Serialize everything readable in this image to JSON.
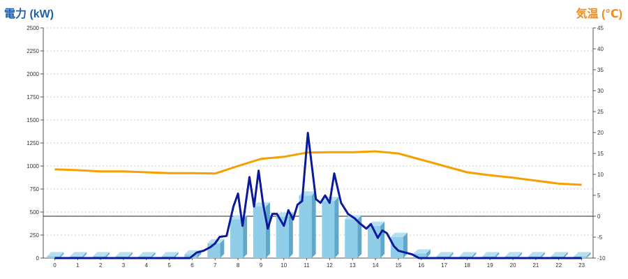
{
  "chart_data": {
    "type": "bar+line",
    "ylabel_left": "電力 (kW)",
    "ylabel_right": "気温 (℃)",
    "x_ticks": [
      "0",
      "1",
      "2",
      "3",
      "4",
      "5",
      "6",
      "7",
      "8",
      "9",
      "10",
      "11",
      "12",
      "13",
      "14",
      "15",
      "16",
      "17",
      "18",
      "19",
      "20",
      "21",
      "22",
      "23"
    ],
    "y_left_ticks": [
      "0",
      "250",
      "500",
      "750",
      "1000",
      "1250",
      "1500",
      "1750",
      "2000",
      "2250",
      "2500"
    ],
    "y_right_ticks": [
      "-10",
      "-5",
      "0",
      "5",
      "10",
      "15",
      "20",
      "25",
      "30",
      "35",
      "40",
      "45"
    ],
    "y_left_range": [
      0,
      2500
    ],
    "y_right_range": [
      -10,
      45
    ],
    "grid": "horizontal-dashed",
    "colors": {
      "bars": "#8fcde8",
      "bar_side": "#5fa8cc",
      "bar_top": "#b6e0f2",
      "power_line": "#0b1a9a",
      "temp_line": "#f5a000",
      "left_title": "#1f5fa8",
      "right_title": "#f08a1c"
    },
    "bar_series": {
      "values": [
        20,
        20,
        20,
        20,
        20,
        20,
        40,
        160,
        420,
        560,
        450,
        680,
        620,
        420,
        350,
        230,
        50,
        20,
        20,
        20,
        20,
        20,
        20,
        20
      ]
    },
    "power_series": {
      "points": [
        [
          0,
          0
        ],
        [
          1,
          0
        ],
        [
          2,
          0
        ],
        [
          3,
          0
        ],
        [
          4,
          0
        ],
        [
          5,
          0
        ],
        [
          5.9,
          0
        ],
        [
          6.2,
          60
        ],
        [
          6.5,
          80
        ],
        [
          6.8,
          120
        ],
        [
          7.0,
          160
        ],
        [
          7.2,
          230
        ],
        [
          7.5,
          240
        ],
        [
          7.8,
          560
        ],
        [
          8.0,
          700
        ],
        [
          8.2,
          350
        ],
        [
          8.5,
          880
        ],
        [
          8.7,
          560
        ],
        [
          8.9,
          950
        ],
        [
          9.1,
          580
        ],
        [
          9.3,
          320
        ],
        [
          9.5,
          480
        ],
        [
          9.7,
          480
        ],
        [
          10.0,
          350
        ],
        [
          10.2,
          520
        ],
        [
          10.4,
          420
        ],
        [
          10.6,
          580
        ],
        [
          10.8,
          620
        ],
        [
          11.05,
          1360
        ],
        [
          11.4,
          640
        ],
        [
          11.6,
          600
        ],
        [
          11.8,
          680
        ],
        [
          12.0,
          600
        ],
        [
          12.2,
          920
        ],
        [
          12.5,
          600
        ],
        [
          12.8,
          480
        ],
        [
          13.1,
          430
        ],
        [
          13.3,
          380
        ],
        [
          13.6,
          320
        ],
        [
          13.8,
          370
        ],
        [
          14.1,
          220
        ],
        [
          14.3,
          300
        ],
        [
          14.5,
          270
        ],
        [
          14.8,
          130
        ],
        [
          15.0,
          80
        ],
        [
          15.3,
          60
        ],
        [
          15.6,
          40
        ],
        [
          15.9,
          0
        ],
        [
          17,
          0
        ],
        [
          18,
          0
        ],
        [
          19,
          0
        ],
        [
          20,
          0
        ],
        [
          21,
          0
        ],
        [
          22,
          0
        ],
        [
          23,
          0
        ]
      ]
    },
    "temp_series": {
      "values": [
        11.2,
        11.0,
        10.7,
        10.7,
        10.5,
        10.3,
        10.3,
        10.2,
        12.0,
        13.7,
        14.2,
        15.2,
        15.3,
        15.3,
        15.5,
        15.0,
        13.5,
        12.0,
        10.5,
        9.8,
        9.2,
        8.5,
        7.8,
        7.5
      ]
    }
  }
}
